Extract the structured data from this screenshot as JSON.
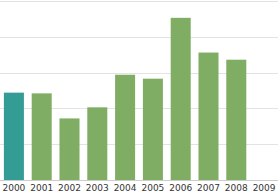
{
  "chart_data": {
    "type": "bar",
    "categories": [
      "2000",
      "2001",
      "2002",
      "2003",
      "2004",
      "2005",
      "2006",
      "2007",
      "2008",
      "2009"
    ],
    "values": [
      2.44,
      2.42,
      1.72,
      2.03,
      2.94,
      2.83,
      4.53,
      3.56,
      3.36,
      null
    ],
    "colors": [
      "#339c94",
      "#7fad63",
      "#7fad63",
      "#7fad63",
      "#7fad63",
      "#7fad63",
      "#7fad63",
      "#7fad63",
      "#7fad63",
      "#7fad63"
    ],
    "ylim": [
      0,
      5
    ],
    "yticks": [
      0,
      1,
      2,
      3,
      4,
      5
    ],
    "grid": true,
    "tick_labels": "x"
  }
}
